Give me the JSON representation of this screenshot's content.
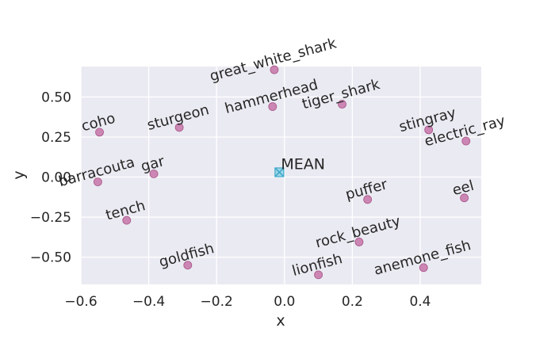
{
  "chart_data": {
    "type": "scatter",
    "title": "",
    "xlabel": "x",
    "ylabel": "y",
    "xlim": [
      -0.6,
      0.58
    ],
    "ylim": [
      -0.67,
      0.69
    ],
    "xticks": [
      -0.6,
      -0.4,
      -0.2,
      0.0,
      0.2,
      0.4
    ],
    "xtick_labels": [
      "−0.6",
      "−0.4",
      "−0.2",
      "0.0",
      "0.2",
      "0.4"
    ],
    "yticks": [
      0.5,
      0.25,
      0.0,
      -0.25,
      -0.5
    ],
    "ytick_labels": [
      "0.50",
      "0.25",
      "0.00",
      "−0.25",
      "−0.50"
    ],
    "grid": true,
    "point_color": "#c774a8",
    "mean_color": "#3fa9c9",
    "background_color": "#eaeaf2",
    "points": [
      {
        "label": "great_white_shark",
        "x": -0.03,
        "y": 0.67
      },
      {
        "label": "hammerhead",
        "x": -0.035,
        "y": 0.44
      },
      {
        "label": "tiger_shark",
        "x": 0.17,
        "y": 0.455
      },
      {
        "label": "sturgeon",
        "x": -0.31,
        "y": 0.31
      },
      {
        "label": "coho",
        "x": -0.545,
        "y": 0.28
      },
      {
        "label": "stingray",
        "x": 0.425,
        "y": 0.295
      },
      {
        "label": "electric_ray",
        "x": 0.535,
        "y": 0.225
      },
      {
        "label": "barracouta",
        "x": -0.55,
        "y": -0.03
      },
      {
        "label": "gar",
        "x": -0.385,
        "y": 0.02
      },
      {
        "label": "puffer",
        "x": 0.245,
        "y": -0.14
      },
      {
        "label": "eel",
        "x": 0.53,
        "y": -0.13
      },
      {
        "label": "tench",
        "x": -0.465,
        "y": -0.27
      },
      {
        "label": "rock_beauty",
        "x": 0.22,
        "y": -0.405
      },
      {
        "label": "goldfish",
        "x": -0.285,
        "y": -0.55
      },
      {
        "label": "lionfish",
        "x": 0.1,
        "y": -0.61
      },
      {
        "label": "anemone_fish",
        "x": 0.41,
        "y": -0.565
      }
    ],
    "mean": {
      "label": "MEAN",
      "x": -0.015,
      "y": 0.03
    }
  }
}
